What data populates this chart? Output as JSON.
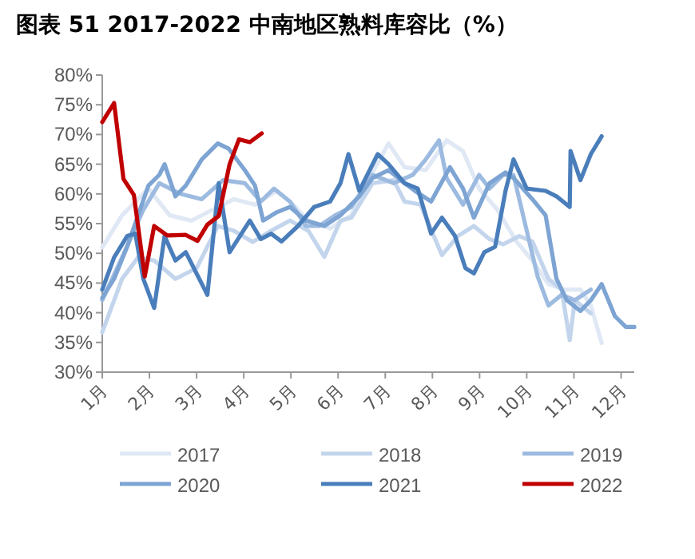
{
  "chart_data": {
    "type": "line",
    "title": "图表 51 2017-2022 中南地区熟料库容比（%）",
    "xlim": [
      1,
      12.28
    ],
    "xticks": [
      {
        "value": 1,
        "label": "1月"
      },
      {
        "value": 2,
        "label": "2月"
      },
      {
        "value": 3,
        "label": "3月"
      },
      {
        "value": 4,
        "label": "4月"
      },
      {
        "value": 5,
        "label": "5月"
      },
      {
        "value": 6,
        "label": "6月"
      },
      {
        "value": 7,
        "label": "7月"
      },
      {
        "value": 8,
        "label": "8月"
      },
      {
        "value": 9,
        "label": "9月"
      },
      {
        "value": 10,
        "label": "10月"
      },
      {
        "value": 11,
        "label": "11月"
      },
      {
        "value": 12,
        "label": "12月"
      }
    ],
    "ylim": [
      30,
      80
    ],
    "yticks": [
      {
        "value": 30,
        "label": "30%"
      },
      {
        "value": 35,
        "label": "35%"
      },
      {
        "value": 40,
        "label": "40%"
      },
      {
        "value": 45,
        "label": "45%"
      },
      {
        "value": 50,
        "label": "50%"
      },
      {
        "value": 55,
        "label": "55%"
      },
      {
        "value": 60,
        "label": "60%"
      },
      {
        "value": 65,
        "label": "65%"
      },
      {
        "value": 70,
        "label": "70%"
      },
      {
        "value": 75,
        "label": "75%"
      },
      {
        "value": 80,
        "label": "80%"
      }
    ],
    "grid": false,
    "legend": "bottom",
    "marker": "none",
    "line_style": "solid",
    "series": [
      {
        "name": "2017",
        "color": "#dfe8f4",
        "x": [
          1,
          1.42,
          1.98,
          2.43,
          2.89,
          3.34,
          3.79,
          4.24,
          4.7,
          4.98,
          5.37,
          5.83,
          6.28,
          6.73,
          7.07,
          7.41,
          7.86,
          8.3,
          8.65,
          8.99,
          9.38,
          9.78,
          10.12,
          10.46,
          10.8,
          11.14,
          11.36,
          11.59
        ],
        "values": [
          51,
          56.4,
          60.9,
          56.4,
          55.5,
          57.3,
          59.1,
          58.2,
          60.5,
          58.7,
          55.5,
          54.2,
          56.4,
          63.6,
          68.5,
          64.5,
          64,
          69,
          67.2,
          60.9,
          57.3,
          52,
          48.8,
          44.8,
          43.9,
          43.9,
          41.2,
          34.9
        ]
      },
      {
        "name": "2018",
        "color": "#c3d5ec",
        "x": [
          1,
          1.42,
          1.76,
          2.1,
          2.55,
          3,
          3.45,
          3.79,
          4.19,
          4.58,
          4.98,
          5.37,
          5.71,
          6.05,
          6.28,
          6.73,
          7.18,
          7.41,
          7.75,
          8.2,
          8.54,
          8.88,
          9.21,
          9.5,
          9.84,
          10.12,
          10.46,
          10.74,
          10.91,
          11.02,
          11.36
        ],
        "values": [
          36.7,
          45.7,
          49.3,
          48.8,
          45.7,
          47.5,
          54.6,
          53.8,
          51.9,
          53.8,
          55.5,
          53.8,
          49.4,
          55.5,
          56,
          61.8,
          62.3,
          58.7,
          58.2,
          49.7,
          52.9,
          54.6,
          52.4,
          51.5,
          52.9,
          52,
          45.7,
          43.9,
          35.4,
          42.1,
          39.9
        ]
      },
      {
        "name": "2019",
        "color": "#9dbbe0",
        "x": [
          1,
          1.42,
          1.87,
          2.21,
          2.66,
          3.11,
          3.56,
          4.02,
          4.36,
          4.64,
          4.98,
          5.32,
          5.6,
          5.94,
          6.28,
          6.73,
          7.18,
          7.58,
          7.86,
          8.14,
          8.3,
          8.65,
          8.99,
          9.21,
          9.5,
          9.72,
          10,
          10.23,
          10.46,
          10.74,
          11.02,
          11.36
        ],
        "values": [
          42.1,
          49.3,
          57.3,
          61.8,
          60,
          59.1,
          62.3,
          61.8,
          58.7,
          60.9,
          58.7,
          54.6,
          54.6,
          56.4,
          57.8,
          63.2,
          61.8,
          63.2,
          65.8,
          69,
          62.7,
          58.2,
          63.2,
          60.9,
          63.2,
          63.2,
          53.8,
          46.1,
          41.2,
          43,
          42.1,
          43.9
        ]
      },
      {
        "name": "2020",
        "color": "#7da4d3",
        "x": [
          1,
          1.25,
          1.53,
          1.76,
          1.98,
          2.21,
          2.32,
          2.55,
          2.77,
          3.11,
          3.45,
          3.68,
          4.02,
          4.24,
          4.41,
          4.7,
          4.98,
          5.32,
          5.71,
          6.05,
          6.45,
          6.73,
          7.07,
          7.41,
          7.63,
          7.97,
          8.37,
          8.65,
          8.88,
          9.21,
          9.55,
          9.72,
          10.12,
          10.4,
          10.63,
          10.85,
          11.14,
          11.36,
          11.59,
          11.87,
          12.1,
          12.28
        ],
        "values": [
          42.5,
          45.7,
          51.1,
          56.4,
          61.4,
          63.2,
          65,
          59.6,
          61.4,
          65.8,
          68.5,
          67.6,
          64,
          61.4,
          55.5,
          56.9,
          57.8,
          55.5,
          54.6,
          56.4,
          59.6,
          62.7,
          64,
          61.8,
          60.5,
          58.7,
          64.5,
          60.9,
          56,
          61.8,
          63.6,
          62.7,
          59.1,
          56.4,
          45.7,
          42.1,
          40.3,
          42.1,
          44.8,
          39.4,
          37.6,
          37.6
        ]
      },
      {
        "name": "2021",
        "color": "#4a7ebb",
        "x": [
          1,
          1.25,
          1.53,
          1.7,
          1.87,
          2.1,
          2.32,
          2.55,
          2.77,
          3,
          3.23,
          3.47,
          3.7,
          4.13,
          4.36,
          4.58,
          4.8,
          5.15,
          5.49,
          5.83,
          6.05,
          6.22,
          6.45,
          6.84,
          7.07,
          7.41,
          7.69,
          7.97,
          8.2,
          8.48,
          8.7,
          8.88,
          9.1,
          9.33,
          9.55,
          9.72,
          10,
          10.4,
          10.63,
          10.91,
          10.93,
          11.14,
          11.36,
          11.59
        ],
        "values": [
          43.9,
          49.3,
          52.9,
          53.3,
          45.7,
          40.8,
          52.9,
          48.8,
          50.2,
          46.6,
          43,
          61.8,
          50.2,
          55.5,
          52.4,
          53.3,
          52,
          54.6,
          57.8,
          58.7,
          61.8,
          66.7,
          60.5,
          66.7,
          65,
          61.8,
          60.9,
          53.3,
          56,
          52.9,
          47.5,
          46.6,
          50.2,
          51.1,
          60.5,
          65.8,
          60.9,
          60.5,
          59.6,
          57.8,
          67.2,
          62.3,
          66.7,
          69.7
        ]
      },
      {
        "name": "2022",
        "color": "#c00000",
        "x": [
          1,
          1.25,
          1.45,
          1.67,
          1.9,
          2.1,
          2.38,
          2.77,
          3.02,
          3.23,
          3.47,
          3.7,
          3.9,
          4.13,
          4.38
        ],
        "values": [
          72.1,
          75.3,
          62.5,
          59.8,
          46.1,
          54.6,
          53,
          53.1,
          52.1,
          54.8,
          56.3,
          65,
          69.2,
          68.7,
          70.2
        ]
      }
    ]
  }
}
